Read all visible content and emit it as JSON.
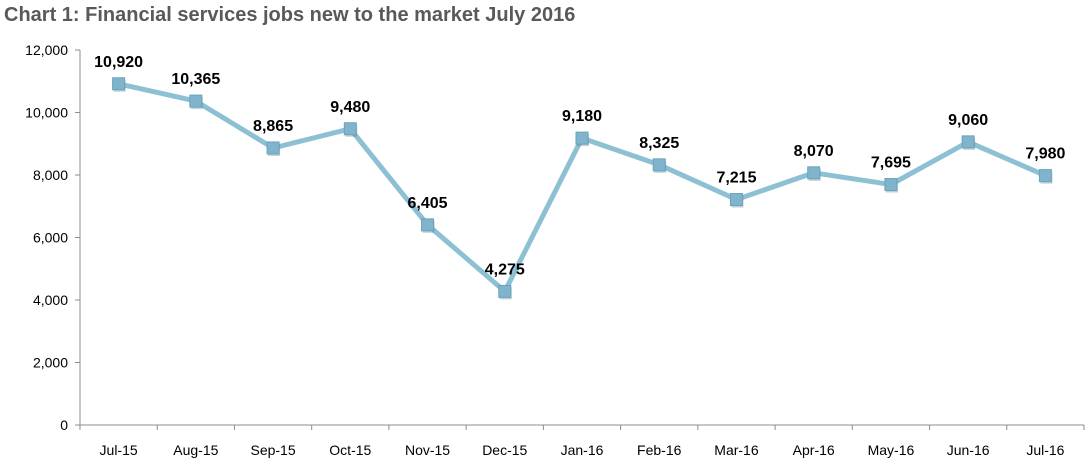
{
  "chart_data": {
    "type": "line",
    "title": "Chart 1: Financial services jobs new to the market July 2016",
    "categories": [
      "Jul-15",
      "Aug-15",
      "Sep-15",
      "Oct-15",
      "Nov-15",
      "Dec-15",
      "Jan-16",
      "Feb-16",
      "Mar-16",
      "Apr-16",
      "May-16",
      "Jun-16",
      "Jul-16"
    ],
    "series": [
      {
        "values": [
          10920,
          10365,
          8865,
          9480,
          6405,
          4275,
          9180,
          8325,
          7215,
          8070,
          7695,
          9060,
          7980
        ]
      }
    ],
    "data_labels": [
      "10,920",
      "10,365",
      "8,865",
      "9,480",
      "6,405",
      "4,275",
      "9,180",
      "8,325",
      "7,215",
      "8,070",
      "7,695",
      "9,060",
      "7,980"
    ],
    "ylim": [
      0,
      12000
    ],
    "yticks": [
      0,
      2000,
      4000,
      6000,
      8000,
      10000,
      12000
    ],
    "ytick_labels": [
      "0",
      "2,000",
      "4,000",
      "6,000",
      "8,000",
      "10,000",
      "12,000"
    ],
    "xlabel": "",
    "ylabel": "",
    "grid": false,
    "legend": "none",
    "line_color": "#8EC0D4",
    "marker_color": "#7FB4CC",
    "marker": "square"
  }
}
